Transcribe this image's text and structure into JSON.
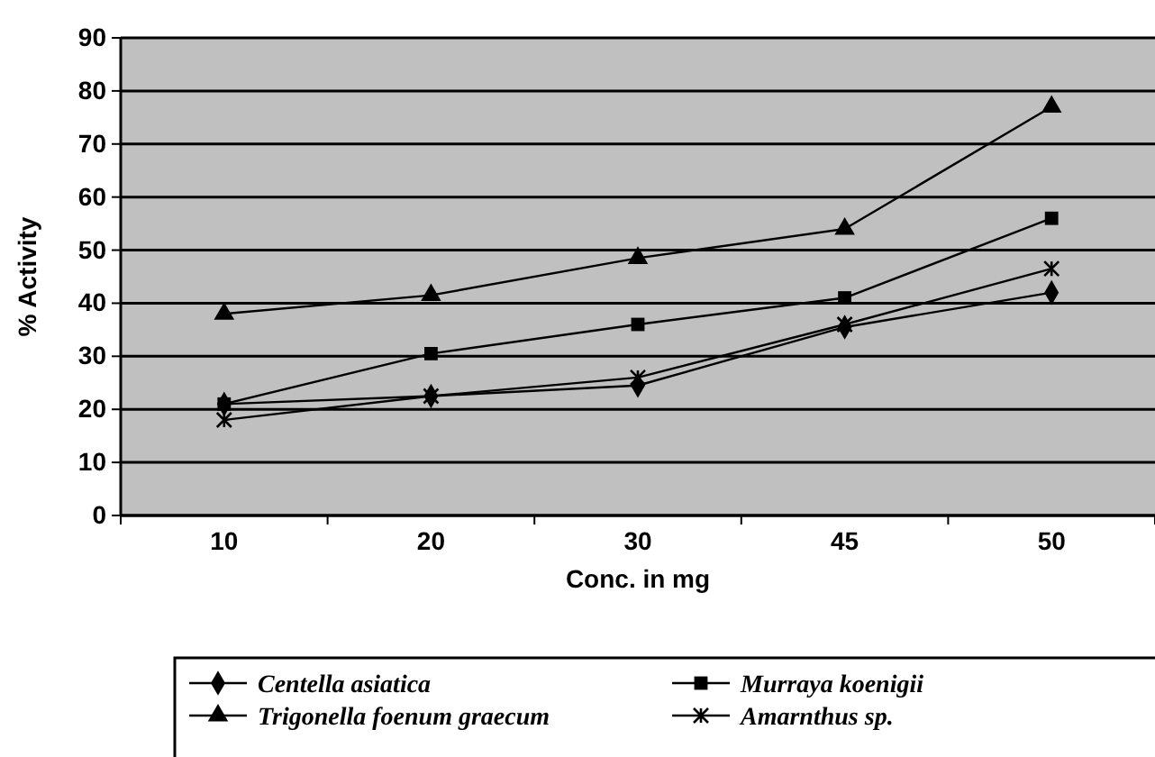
{
  "chart_data": {
    "type": "line",
    "xlabel": "Conc. in mg",
    "ylabel": "% Activity",
    "categories": [
      "10",
      "20",
      "30",
      "45",
      "50"
    ],
    "series": [
      {
        "name": "Centella asiatica",
        "color": "#000000",
        "marker": "diamond",
        "values": [
          21,
          22.5,
          24.5,
          35.5,
          42
        ]
      },
      {
        "name": "Murraya koenigii",
        "color": "#000000",
        "marker": "square",
        "values": [
          21,
          30.5,
          36,
          41,
          56
        ]
      },
      {
        "name": "Trigonella foenum graecum",
        "color": "#000000",
        "marker": "triangle",
        "values": [
          38,
          41.5,
          48.5,
          54,
          77
        ]
      },
      {
        "name": "Amarnthus sp.",
        "color": "#000000",
        "marker": "cross",
        "values": [
          18,
          22.5,
          26,
          36,
          46.5
        ]
      }
    ],
    "ylim": [
      0,
      90
    ],
    "yticks": [
      0,
      10,
      20,
      30,
      40,
      50,
      60,
      70,
      80,
      90
    ],
    "grid": "y",
    "legend": "bottom"
  }
}
